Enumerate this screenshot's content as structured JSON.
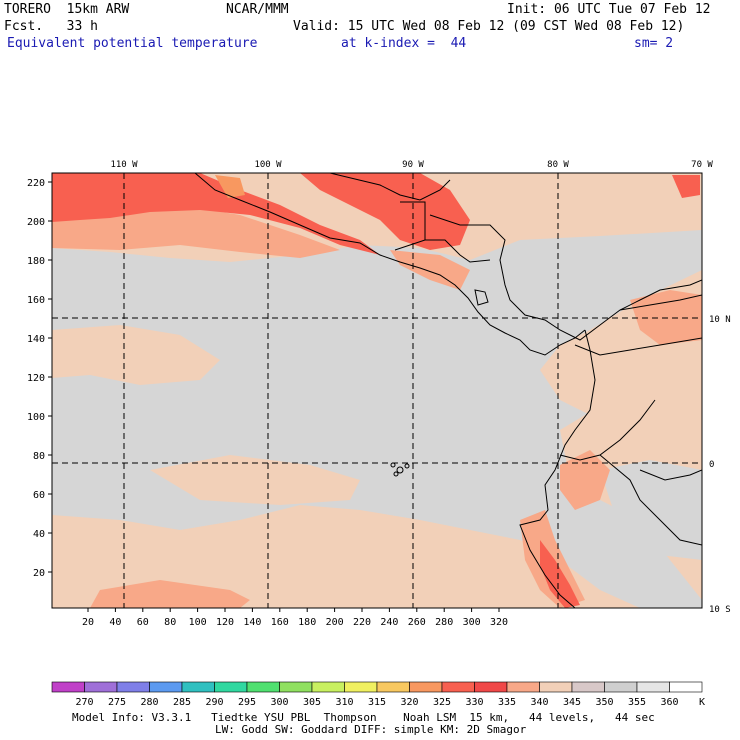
{
  "header": {
    "model": "TORERO  15km ARW",
    "org": "NCAR/MMM",
    "init": "Init: 06 UTC Tue 07 Feb 12",
    "fcst": "Fcst.   33 h",
    "valid": "Valid: 15 UTC Wed 08 Feb 12 (09 CST Wed 08 Feb 12)",
    "field": "Equivalent potential temperature",
    "level": "at k-index =  44",
    "smooth": "sm= 2"
  },
  "axes": {
    "top_lon_labels": [
      "110 W",
      "100 W",
      "90 W",
      "80 W",
      "70 W"
    ],
    "right_lat_labels": [
      "10 N",
      "0",
      "10 S"
    ],
    "x_ticks": [
      "20",
      "40",
      "60",
      "80",
      "100",
      "120",
      "140",
      "160",
      "180",
      "200",
      "220",
      "240",
      "260",
      "280",
      "300",
      "320"
    ],
    "y_ticks": [
      "20",
      "40",
      "60",
      "80",
      "100",
      "120",
      "140",
      "160",
      "180",
      "200",
      "220"
    ]
  },
  "colorbar": {
    "unit": "K",
    "labels": [
      "270",
      "275",
      "280",
      "285",
      "290",
      "295",
      "300",
      "305",
      "310",
      "315",
      "320",
      "325",
      "330",
      "335",
      "340",
      "345",
      "350",
      "355",
      "360"
    ],
    "colors": [
      "#c040c8",
      "#9f6fd8",
      "#7f7fe8",
      "#5c9af0",
      "#30c0c0",
      "#30d8a0",
      "#50e070",
      "#90e060",
      "#c8f060",
      "#f0f060",
      "#f8c860",
      "#f89860",
      "#f86050",
      "#f04848",
      "#f8a888",
      "#f2d0b8",
      "#d8c8c8",
      "#cfcfcf",
      "#e6e6e6",
      "#ffffff"
    ]
  },
  "map_colors": {
    "background_340": "#f2d0b8",
    "low_345": "#d6d6d6",
    "mid_335": "#f8a888",
    "high_330": "#f86050",
    "hot_325": "#f89860",
    "gridline": "#000000"
  },
  "footer": {
    "line1": "Model Info: V3.3.1   Tiedtke YSU PBL  Thompson    Noah LSM  15 km,   44 levels,   44 sec",
    "line2": "LW: Godd SW: Goddard DIFF: simple KM: 2D Smagor"
  }
}
